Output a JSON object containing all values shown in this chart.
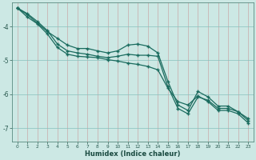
{
  "xlabel": "Humidex (Indice chaleur)",
  "background_color": "#cce8e4",
  "grid_color_v": "#c8b8b8",
  "grid_color_h": "#a8c8c4",
  "line_color": "#1a6b5e",
  "xlim": [
    -0.5,
    23.5
  ],
  "ylim": [
    -7.4,
    -3.3
  ],
  "yticks": [
    -7,
    -6,
    -5,
    -4
  ],
  "xticks": [
    0,
    1,
    2,
    3,
    4,
    5,
    6,
    7,
    8,
    9,
    10,
    11,
    12,
    13,
    14,
    15,
    16,
    17,
    18,
    19,
    20,
    21,
    22,
    23
  ],
  "line1_x": [
    0,
    1,
    2,
    3,
    4,
    5,
    6,
    7,
    8,
    9,
    10,
    11,
    12,
    13,
    14,
    15,
    16,
    17,
    18,
    19,
    20,
    21,
    22,
    23
  ],
  "line1_y": [
    -3.45,
    -3.65,
    -3.9,
    -4.15,
    -4.35,
    -4.55,
    -4.65,
    -4.65,
    -4.72,
    -4.78,
    -4.72,
    -4.55,
    -4.52,
    -4.58,
    -4.78,
    -5.62,
    -6.32,
    -6.48,
    -5.92,
    -6.08,
    -6.35,
    -6.35,
    -6.52,
    -6.72
  ],
  "line2_x": [
    0,
    1,
    2,
    3,
    4,
    5,
    6,
    7,
    8,
    9,
    10,
    11,
    12,
    13,
    14,
    15,
    16,
    17,
    18,
    19,
    20,
    21,
    22,
    23
  ],
  "line2_y": [
    -3.45,
    -3.62,
    -3.85,
    -4.12,
    -4.52,
    -4.72,
    -4.78,
    -4.82,
    -4.88,
    -4.92,
    -4.88,
    -4.82,
    -4.85,
    -4.85,
    -4.88,
    -5.78,
    -6.42,
    -6.58,
    -6.08,
    -6.18,
    -6.42,
    -6.42,
    -6.52,
    -6.78
  ],
  "line3_x": [
    0,
    1,
    2,
    3,
    4,
    5,
    6,
    7,
    8,
    9,
    10,
    11,
    12,
    13,
    14,
    15,
    16,
    17,
    18,
    19,
    20,
    21,
    22,
    23
  ],
  "line3_y": [
    -3.45,
    -3.72,
    -3.92,
    -4.22,
    -4.62,
    -4.82,
    -4.88,
    -4.9,
    -4.92,
    -4.98,
    -5.02,
    -5.08,
    -5.12,
    -5.18,
    -5.28,
    -5.82,
    -6.22,
    -6.32,
    -6.05,
    -6.22,
    -6.48,
    -6.48,
    -6.58,
    -6.85
  ]
}
